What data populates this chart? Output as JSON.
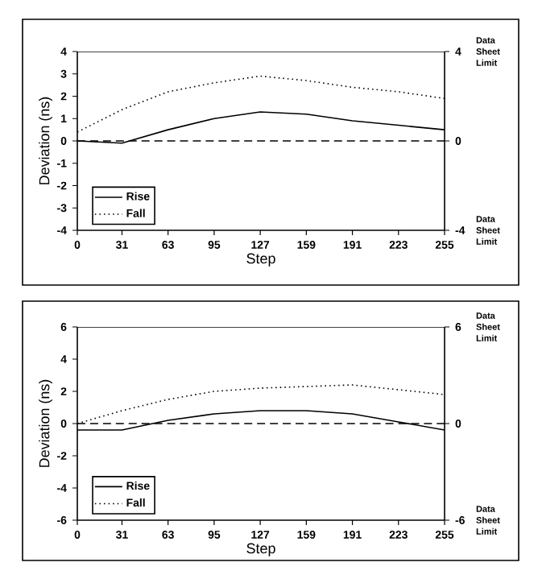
{
  "chart_data": [
    {
      "type": "line",
      "xlabel": "Step",
      "ylabel": "Deviation (ns)",
      "x": [
        0,
        31,
        63,
        95,
        127,
        159,
        191,
        223,
        255
      ],
      "xlim": [
        0,
        255
      ],
      "xticks": [
        0,
        31,
        63,
        95,
        127,
        159,
        191,
        223,
        255
      ],
      "ylim": [
        -4,
        4
      ],
      "yticks": [
        -4,
        -3,
        -2,
        -1,
        0,
        1,
        2,
        3,
        4
      ],
      "y2lim": [
        -4,
        4
      ],
      "y2ticks": [
        -4,
        0,
        4
      ],
      "legend": "bottom left",
      "series": [
        {
          "name": "Rise",
          "color": "#000000",
          "line_style": "solid",
          "values": [
            0.0,
            -0.1,
            0.5,
            1.0,
            1.3,
            1.2,
            0.9,
            0.7,
            0.5
          ]
        },
        {
          "name": "Fall",
          "color": "#000000",
          "line_style": "dotted",
          "values": [
            0.4,
            1.4,
            2.2,
            2.6,
            2.9,
            2.7,
            2.4,
            2.2,
            1.9
          ]
        }
      ],
      "ref_lines": [
        {
          "axis": "y",
          "value": 0,
          "line_style": "dashed",
          "color": "#000000"
        }
      ],
      "annotations": [
        "Data Sheet Limit",
        "Data Sheet Limit"
      ]
    },
    {
      "type": "line",
      "xlabel": "Step",
      "ylabel": "Deviation (ns)",
      "x": [
        0,
        31,
        63,
        95,
        127,
        159,
        191,
        223,
        255
      ],
      "xlim": [
        0,
        255
      ],
      "xticks": [
        0,
        31,
        63,
        95,
        127,
        159,
        191,
        223,
        255
      ],
      "ylim": [
        -6,
        6
      ],
      "yticks": [
        -6,
        -4,
        -2,
        0,
        2,
        4,
        6
      ],
      "y2lim": [
        -6,
        6
      ],
      "y2ticks": [
        -6,
        0,
        6
      ],
      "legend": "bottom left",
      "series": [
        {
          "name": "Rise",
          "color": "#000000",
          "line_style": "solid",
          "values": [
            -0.4,
            -0.4,
            0.2,
            0.6,
            0.8,
            0.8,
            0.6,
            0.1,
            -0.4
          ]
        },
        {
          "name": "Fall",
          "color": "#000000",
          "line_style": "dotted",
          "values": [
            0.0,
            0.8,
            1.5,
            2.0,
            2.2,
            2.3,
            2.4,
            2.1,
            1.8
          ]
        }
      ],
      "ref_lines": [
        {
          "axis": "y",
          "value": 0,
          "line_style": "dashed",
          "color": "#000000"
        }
      ],
      "annotations": [
        "Data Sheet Limit",
        "Data Sheet Limit"
      ]
    }
  ]
}
